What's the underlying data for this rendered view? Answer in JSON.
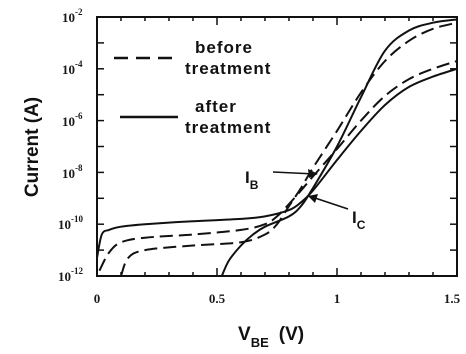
{
  "chart_data": {
    "type": "line",
    "x_axis": {
      "label_main": "V",
      "label_sub": "BE",
      "label_unit": "(V)",
      "range": [
        0,
        1.5
      ],
      "ticks": [
        0,
        0.5,
        1,
        1.5
      ],
      "tick_labels": [
        "0",
        "0.5",
        "1",
        "1.5"
      ]
    },
    "y_axis": {
      "label": "Current (A)",
      "scale": "log",
      "range": [
        1e-12,
        0.01
      ],
      "ticks": [
        1e-12,
        1e-10,
        1e-08,
        1e-06,
        0.0001,
        0.01
      ],
      "tick_labels": [
        {
          "base": "10",
          "exp": "-12"
        },
        {
          "base": "10",
          "exp": "-10"
        },
        {
          "base": "10",
          "exp": "-8"
        },
        {
          "base": "10",
          "exp": "-6"
        },
        {
          "base": "10",
          "exp": "-4"
        },
        {
          "base": "10",
          "exp": "-2"
        }
      ]
    },
    "legend": {
      "placement": "top-left",
      "entries": [
        {
          "style": "dashed",
          "line1": "before",
          "line2": "treatment"
        },
        {
          "style": "solid",
          "line1": "after",
          "line2": "treatment"
        }
      ]
    },
    "annotations": [
      {
        "main": "I",
        "sub": "B"
      },
      {
        "main": "I",
        "sub": "C"
      }
    ],
    "series": [
      {
        "style": "dashed",
        "curve": "IB",
        "x": [
          0.01,
          0.05,
          0.1,
          0.2,
          0.4,
          0.6,
          0.7,
          0.75,
          0.8,
          0.85,
          0.9,
          1.0,
          1.1,
          1.2,
          1.3,
          1.4,
          1.5
        ],
        "y": [
          1.6e-12,
          8e-12,
          2e-11,
          3e-11,
          4e-11,
          6e-11,
          1e-10,
          2e-10,
          6e-10,
          2e-09,
          7e-09,
          8e-08,
          1e-06,
          9e-06,
          4e-05,
          0.0001,
          0.0002
        ]
      },
      {
        "style": "dashed",
        "curve": "IC",
        "x": [
          0.1,
          0.13,
          0.2,
          0.4,
          0.6,
          0.7,
          0.75,
          0.8,
          0.85,
          0.9,
          1.0,
          1.1,
          1.2,
          1.3,
          1.4,
          1.5
        ],
        "y": [
          1e-12,
          5e-12,
          1e-11,
          1.5e-11,
          2e-11,
          4e-11,
          1e-10,
          5e-10,
          2.5e-09,
          1.5e-08,
          4e-07,
          1.2e-05,
          0.0002,
          0.0012,
          0.0035,
          0.006
        ]
      },
      {
        "style": "solid",
        "curve": "IB",
        "x": [
          0,
          0.02,
          0.05,
          0.1,
          0.2,
          0.4,
          0.6,
          0.7,
          0.8,
          0.85,
          0.9,
          1.0,
          1.1,
          1.2,
          1.3,
          1.4,
          1.5
        ],
        "y": [
          5e-12,
          4e-11,
          6e-11,
          8e-11,
          1e-10,
          1.3e-10,
          1.6e-10,
          2e-10,
          3.5e-10,
          7e-10,
          2e-09,
          3e-08,
          4e-07,
          4e-06,
          2e-05,
          5e-05,
          0.0001
        ]
      },
      {
        "style": "solid",
        "curve": "IC",
        "x": [
          0.52,
          0.55,
          0.6,
          0.65,
          0.7,
          0.8,
          0.85,
          0.9,
          1.0,
          1.1,
          1.2,
          1.3,
          1.4,
          1.5
        ],
        "y": [
          1e-12,
          4e-12,
          1.5e-11,
          4e-11,
          8e-11,
          2e-10,
          5e-10,
          2.5e-09,
          1e-07,
          8e-06,
          0.0005,
          0.003,
          0.006,
          0.008
        ]
      }
    ]
  }
}
